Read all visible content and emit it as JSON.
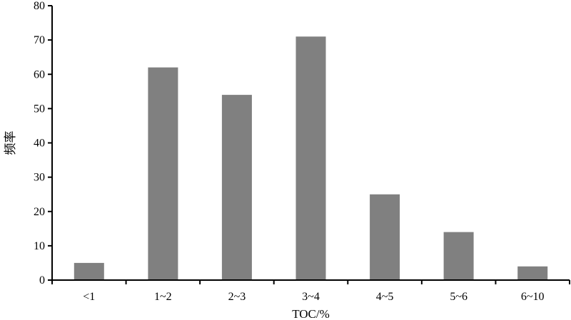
{
  "chart_data": {
    "type": "bar",
    "title": "",
    "xlabel": "TOC/%",
    "ylabel": "频率",
    "categories": [
      "<1",
      "1~2",
      "2~3",
      "3~4",
      "4~5",
      "5~6",
      "6~10"
    ],
    "values": [
      5,
      62,
      54,
      71,
      25,
      14,
      4
    ],
    "ylim": [
      0,
      80
    ],
    "yticks": [
      0,
      10,
      20,
      30,
      40,
      50,
      60,
      70,
      80
    ],
    "bar_color": "#808080",
    "grid": false,
    "legend": "none"
  }
}
